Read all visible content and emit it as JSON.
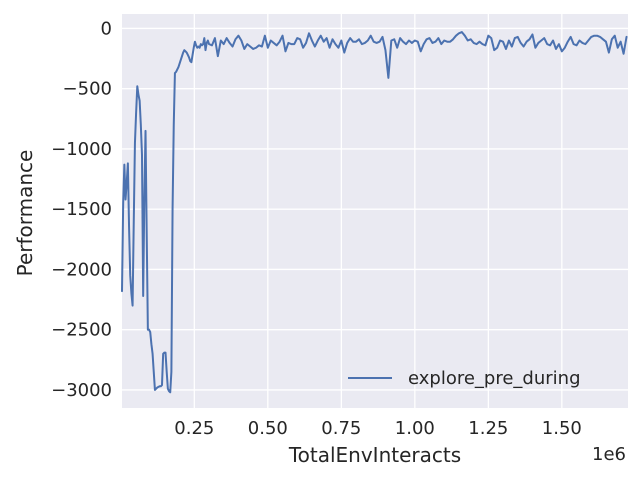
{
  "chart_data": {
    "type": "line",
    "xlabel": "TotalEnvInteracts",
    "ylabel": "Performance",
    "x_offset_label": "1e6",
    "xlim": [
      4000,
      1725000
    ],
    "ylim": [
      -3150,
      120
    ],
    "xticks": [
      250000,
      500000,
      750000,
      1000000,
      1250000,
      1500000
    ],
    "xtick_labels": [
      "0.25",
      "0.50",
      "0.75",
      "1.00",
      "1.25",
      "1.50"
    ],
    "yticks": [
      0,
      -500,
      -1000,
      -1500,
      -2000,
      -2500,
      -3000
    ],
    "ytick_labels": [
      "0",
      "−500",
      "−1000",
      "−1500",
      "−2000",
      "−2500",
      "−3000"
    ],
    "grid": true,
    "legend_location": "lower right",
    "series": [
      {
        "name": "explore_pre_during",
        "color": "#4c72b0",
        "x": [
          4000,
          8000,
          12000,
          16000,
          20000,
          24000,
          28000,
          32000,
          36000,
          40000,
          44000,
          48000,
          52000,
          56000,
          60000,
          64000,
          68000,
          72000,
          76000,
          80000,
          84000,
          88000,
          92000,
          96000,
          100000,
          104000,
          108000,
          112000,
          116000,
          120000,
          124000,
          128000,
          132000,
          136000,
          140000,
          144000,
          148000,
          152000,
          156000,
          160000,
          164000,
          168000,
          172000,
          176000,
          180000,
          184000,
          188000,
          192000,
          196000,
          200000,
          204000,
          208000,
          212000,
          216000,
          220000,
          224000,
          228000,
          232000,
          236000,
          240000,
          244000,
          248000,
          252000,
          256000,
          260000,
          264000,
          268000,
          272000,
          276000,
          280000,
          284000,
          288000,
          292000,
          296000,
          300000,
          310000,
          320000,
          330000,
          340000,
          350000,
          360000,
          370000,
          380000,
          390000,
          400000,
          410000,
          420000,
          430000,
          440000,
          450000,
          460000,
          470000,
          480000,
          490000,
          500000,
          510000,
          520000,
          530000,
          540000,
          550000,
          560000,
          570000,
          580000,
          590000,
          600000,
          610000,
          620000,
          630000,
          640000,
          650000,
          660000,
          670000,
          680000,
          690000,
          700000,
          710000,
          720000,
          730000,
          740000,
          750000,
          760000,
          770000,
          780000,
          790000,
          800000,
          810000,
          820000,
          830000,
          840000,
          850000,
          860000,
          870000,
          880000,
          890000,
          900000,
          910000,
          920000,
          930000,
          940000,
          950000,
          960000,
          970000,
          980000,
          990000,
          1000000,
          1010000,
          1020000,
          1030000,
          1040000,
          1050000,
          1060000,
          1070000,
          1080000,
          1090000,
          1100000,
          1110000,
          1120000,
          1130000,
          1140000,
          1150000,
          1160000,
          1170000,
          1180000,
          1190000,
          1200000,
          1210000,
          1220000,
          1230000,
          1240000,
          1250000,
          1260000,
          1270000,
          1280000,
          1290000,
          1300000,
          1310000,
          1320000,
          1330000,
          1340000,
          1350000,
          1360000,
          1370000,
          1380000,
          1390000,
          1400000,
          1410000,
          1420000,
          1430000,
          1440000,
          1450000,
          1460000,
          1470000,
          1480000,
          1490000,
          1500000,
          1510000,
          1520000,
          1530000,
          1540000,
          1550000,
          1560000,
          1570000,
          1580000,
          1590000,
          1600000,
          1610000,
          1620000,
          1630000,
          1640000,
          1650000,
          1660000,
          1670000,
          1680000,
          1690000,
          1700000,
          1710000,
          1720000
        ],
        "y": [
          -2180,
          -1450,
          -1130,
          -1420,
          -1280,
          -1120,
          -1650,
          -2050,
          -2200,
          -2300,
          -1600,
          -950,
          -700,
          -480,
          -550,
          -600,
          -800,
          -1050,
          -2220,
          -1400,
          -850,
          -1700,
          -2500,
          -2500,
          -2520,
          -2620,
          -2700,
          -2850,
          -3000,
          -2990,
          -2980,
          -2975,
          -2970,
          -2970,
          -2960,
          -2700,
          -2690,
          -2690,
          -2850,
          -2990,
          -3010,
          -3020,
          -2850,
          -1500,
          -800,
          -370,
          -360,
          -340,
          -320,
          -290,
          -260,
          -230,
          -200,
          -180,
          -190,
          -200,
          -220,
          -240,
          -270,
          -280,
          -220,
          -160,
          -110,
          -140,
          -160,
          -150,
          -160,
          -130,
          -140,
          -130,
          -80,
          -180,
          -120,
          -100,
          -130,
          -140,
          -80,
          -230,
          -100,
          -130,
          -80,
          -120,
          -150,
          -90,
          -60,
          -100,
          -170,
          -130,
          -150,
          -170,
          -160,
          -140,
          -150,
          -60,
          -160,
          -100,
          -120,
          -140,
          -110,
          -60,
          -190,
          -120,
          -130,
          -130,
          -80,
          -90,
          -160,
          -120,
          -40,
          -100,
          -150,
          -100,
          -60,
          -110,
          -80,
          -160,
          -90,
          -130,
          -160,
          -100,
          -200,
          -120,
          -80,
          -110,
          -110,
          -90,
          -130,
          -120,
          -100,
          -60,
          -110,
          -120,
          -110,
          -70,
          -180,
          -410,
          -100,
          -90,
          -160,
          -80,
          -110,
          -130,
          -100,
          -120,
          -100,
          -110,
          -190,
          -130,
          -90,
          -80,
          -120,
          -110,
          -80,
          -130,
          -100,
          -110,
          -110,
          -90,
          -60,
          -40,
          -30,
          -60,
          -100,
          -90,
          -120,
          -130,
          -110,
          -130,
          -140,
          -60,
          -80,
          -180,
          -160,
          -100,
          -110,
          -170,
          -100,
          -150,
          -80,
          -70,
          -120,
          -150,
          -110,
          -90,
          -50,
          -160,
          -120,
          -100,
          -80,
          -130,
          -140,
          -100,
          -170,
          -130,
          -190,
          -160,
          -110,
          -70,
          -130,
          -140,
          -100,
          -120,
          -130,
          -100,
          -70,
          -60,
          -60,
          -70,
          -90,
          -110,
          -200,
          -90,
          -60,
          -160,
          -110,
          -210,
          -70
        ]
      }
    ]
  }
}
